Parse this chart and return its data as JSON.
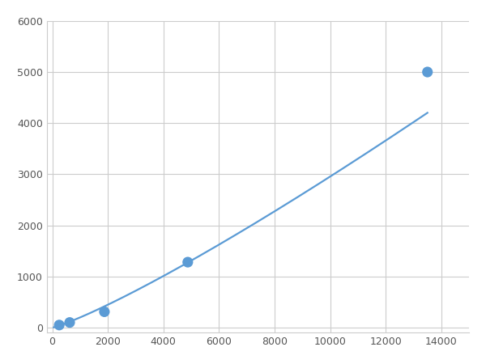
{
  "x_points": [
    250,
    625,
    1875,
    4875,
    13500
  ],
  "y_points": [
    50,
    100,
    310,
    1280,
    5000
  ],
  "line_color": "#5b9bd5",
  "marker_color": "#5b9bd5",
  "marker_size": 6,
  "linewidth": 1.6,
  "xlim": [
    -200,
    15000
  ],
  "ylim": [
    -100,
    6000
  ],
  "xticks": [
    0,
    2000,
    4000,
    6000,
    8000,
    10000,
    12000,
    14000
  ],
  "yticks": [
    0,
    1000,
    2000,
    3000,
    4000,
    5000,
    6000
  ],
  "xtick_labels": [
    "0",
    "2000",
    "4000",
    "6000",
    "8000",
    "10000",
    "12000",
    "14000"
  ],
  "ytick_labels": [
    "0",
    "1000",
    "2000",
    "3000",
    "4000",
    "5000",
    "6000"
  ],
  "grid_color": "#cccccc",
  "background_color": "#ffffff",
  "figsize": [
    6.0,
    4.5
  ],
  "dpi": 100
}
